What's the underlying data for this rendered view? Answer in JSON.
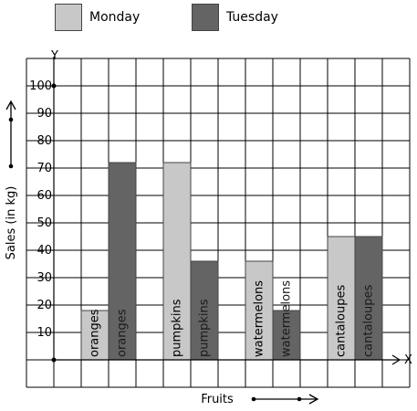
{
  "chart_data": {
    "type": "bar",
    "categories": [
      "oranges",
      "pumpkins",
      "watermelons",
      "cantaloupes"
    ],
    "series": [
      {
        "name": "Monday",
        "values": [
          18,
          72,
          36,
          45
        ],
        "color": "#c8c8c8"
      },
      {
        "name": "Tuesday",
        "values": [
          72,
          36,
          18,
          45
        ],
        "color": "#646464"
      }
    ],
    "bar_labels": [
      "oranges",
      "pumpkins",
      "watermelons",
      "cantaloupes"
    ],
    "xlabel": "Fruits",
    "ylabel": "Sales (in kg)",
    "x_axis_letter": "X",
    "y_axis_letter": "Y",
    "ylim": [
      0,
      100
    ],
    "yticks": [
      10,
      20,
      30,
      40,
      50,
      60,
      70,
      80,
      90,
      100
    ],
    "grid": true,
    "legend_position": "top-left"
  }
}
